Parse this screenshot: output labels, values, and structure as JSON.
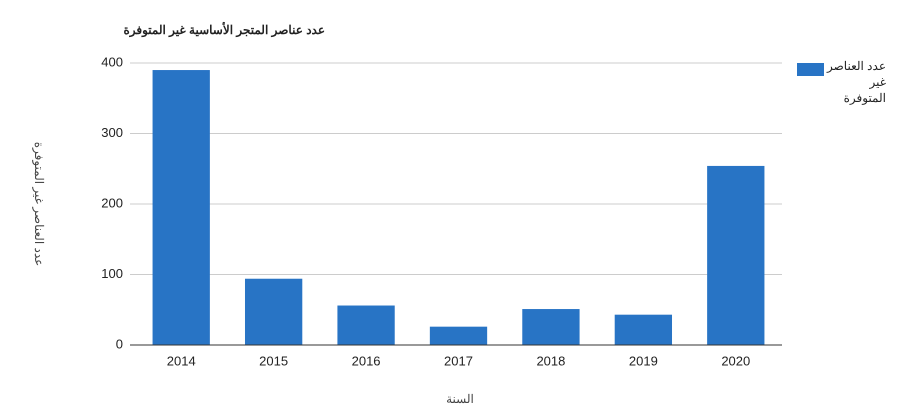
{
  "chart_data": {
    "type": "bar",
    "title": "عدد عناصر المتجر الأساسية غير المتوفرة",
    "x_label": "السنة",
    "y_label": "عدد العناصر غير المتوفرة",
    "categories": [
      "2014",
      "2015",
      "2016",
      "2017",
      "2018",
      "2019",
      "2020"
    ],
    "series": [
      {
        "name": "عدد العناصر غير المتوفرة",
        "color": "#2874c5",
        "values": [
          390,
          94,
          56,
          26,
          51,
          43,
          254
        ]
      }
    ],
    "ylim": [
      0,
      400
    ],
    "yticks": [
      0,
      100,
      200,
      300,
      400
    ],
    "grid": true,
    "legend": "right"
  }
}
